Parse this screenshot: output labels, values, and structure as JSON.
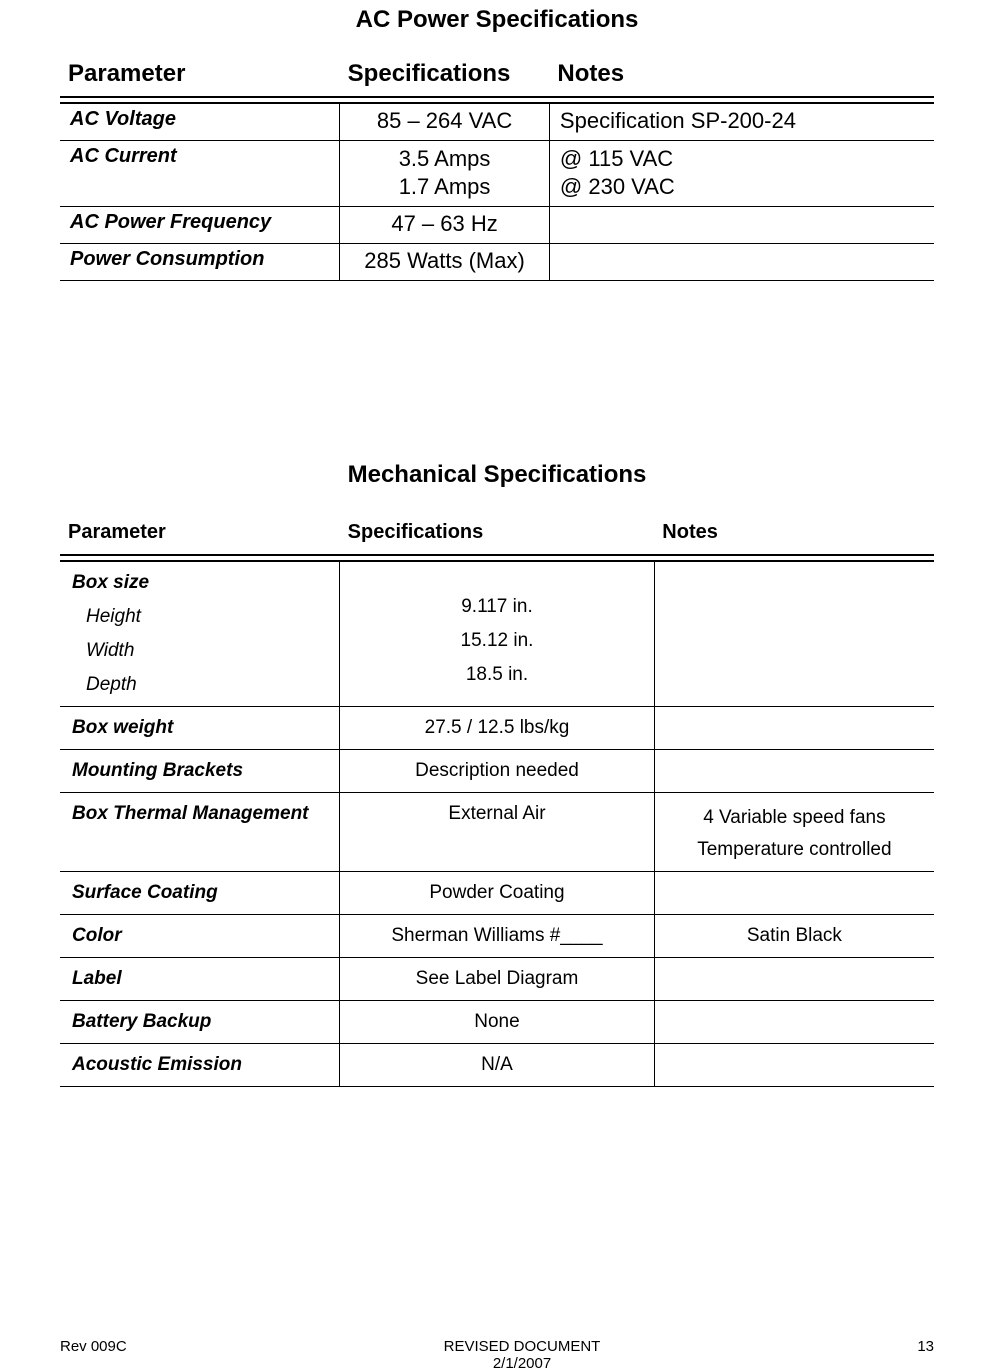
{
  "ac_title": "AC Power Specifications",
  "ac_headers": {
    "param": "Parameter",
    "spec": "Specifications",
    "notes": "Notes"
  },
  "ac_rows": {
    "voltage": {
      "param": "AC Voltage",
      "spec": "85 – 264 VAC",
      "notes": "Specification SP-200-24"
    },
    "current": {
      "param": "AC Current",
      "spec_lines": [
        "3.5 Amps",
        "1.7 Amps"
      ],
      "notes_lines": [
        "@ 115 VAC",
        "@ 230 VAC"
      ]
    },
    "freq": {
      "param": "AC Power Frequency",
      "spec": "47 – 63 Hz",
      "notes": ""
    },
    "power": {
      "param": "Power Consumption",
      "spec": "285 Watts (Max)",
      "notes": ""
    }
  },
  "mech_title": "Mechanical Specifications",
  "mech_headers": {
    "param": "Parameter",
    "spec": "Specifications",
    "notes": "Notes"
  },
  "mech_rows": {
    "boxsize": {
      "param": "Box size",
      "sub": {
        "height_label": "Height",
        "width_label": "Width",
        "depth_label": "Depth",
        "height": "9.117 in.",
        "width": "15.12 in.",
        "depth": "18.5 in."
      },
      "notes": ""
    },
    "weight": {
      "param": "Box weight",
      "spec": "27.5 / 12.5 lbs/kg",
      "notes": ""
    },
    "mount": {
      "param": "Mounting Brackets",
      "spec": "Description needed",
      "notes": ""
    },
    "thermal": {
      "param": "Box Thermal Management",
      "spec": "External Air",
      "notes_lines": [
        "4 Variable speed fans",
        "Temperature controlled"
      ]
    },
    "coating": {
      "param": "Surface Coating",
      "spec": "Powder Coating",
      "notes": ""
    },
    "color": {
      "param": "Color",
      "spec": "Sherman Williams #____",
      "notes": "Satin Black"
    },
    "label": {
      "param": "Label",
      "spec": "See Label Diagram",
      "notes": ""
    },
    "battery": {
      "param": "Battery Backup",
      "spec": "None",
      "notes": ""
    },
    "acoustic": {
      "param": "Acoustic Emission",
      "spec": "N/A",
      "notes": ""
    }
  },
  "footer": {
    "rev": "Rev 009C",
    "center_top": "REVISED DOCUMENT",
    "center_bottom": "2/1/2007",
    "page": "13"
  }
}
